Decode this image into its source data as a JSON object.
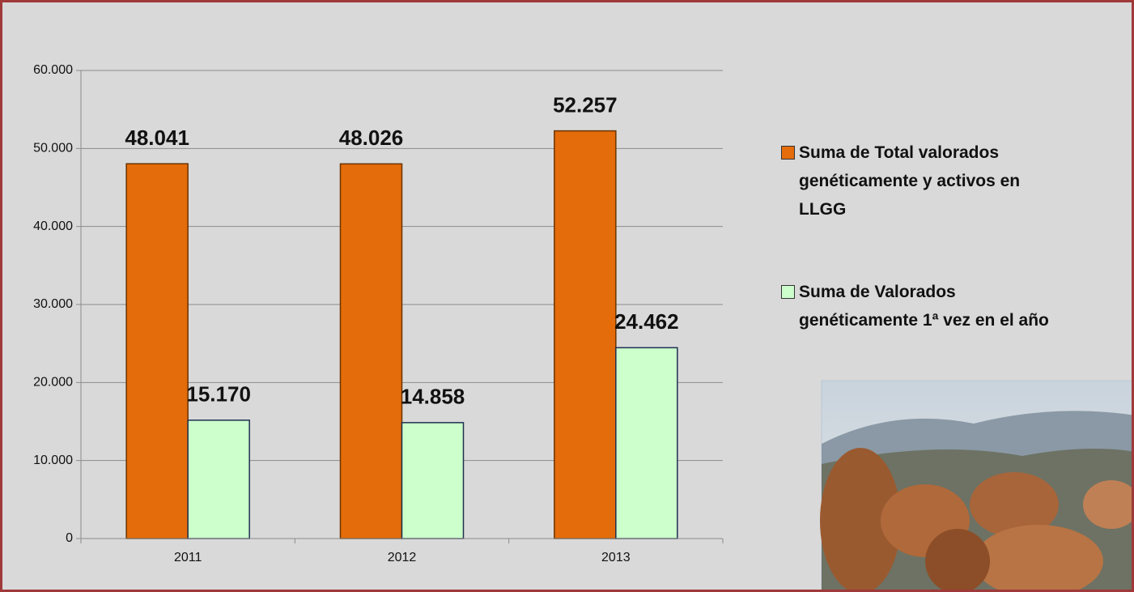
{
  "chart_data": {
    "type": "bar",
    "categories": [
      "2011",
      "2012",
      "2013"
    ],
    "series": [
      {
        "name": "Suma de Total valorados genéticamente y activos en LLGG",
        "color": "#e46c0a",
        "values": [
          48041,
          48026,
          52257
        ],
        "value_labels": [
          "48.041",
          "48.026",
          "52.257"
        ]
      },
      {
        "name": "Suma de Valorados genéticamente 1ª vez en el año",
        "color": "#ccffcc",
        "values": [
          15170,
          14858,
          24462
        ],
        "value_labels": [
          "15.170",
          "14.858",
          "24.462"
        ]
      }
    ],
    "ylim": [
      0,
      60000
    ],
    "yticks": [
      0,
      {
        "value": 10000,
        "label": "10.000"
      },
      {
        "value": 20000,
        "label": "20.000"
      },
      {
        "value": 30000,
        "label": "30.000"
      },
      {
        "value": 40000,
        "label": "40.000"
      },
      {
        "value": 50000,
        "label": "50.000"
      },
      {
        "value": 60000,
        "label": "60.000"
      }
    ],
    "grid": true,
    "legend": "right"
  }
}
